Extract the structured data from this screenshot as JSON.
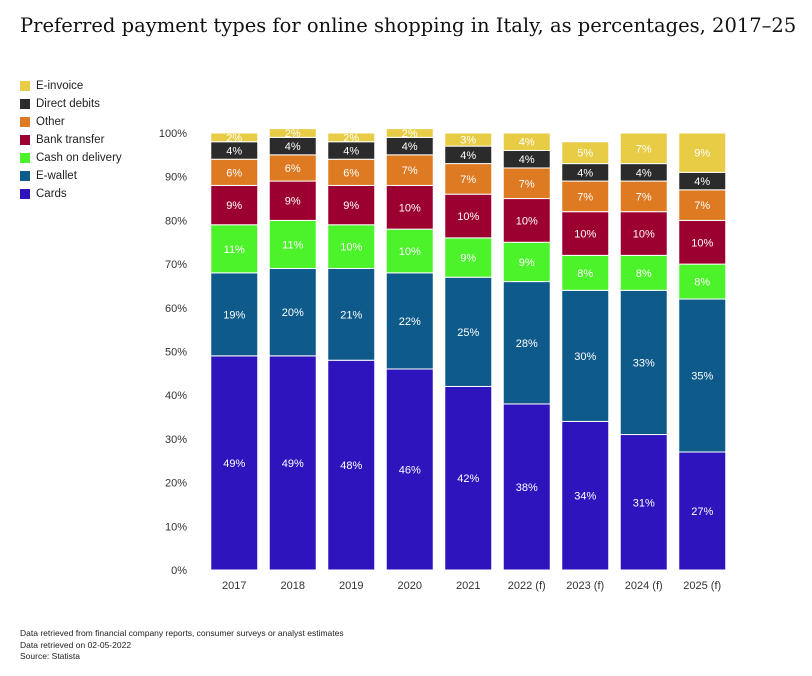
{
  "page": {
    "footer": {
      "line1": "Data retrieved from financial company reports, consumer surveys or analyst estimates",
      "line2": "Data retrieved on 02-05-2022",
      "line3": "Source: Statista"
    }
  },
  "chart_data": {
    "type": "bar",
    "stacked": true,
    "title": "Preferred payment types for online shopping in Italy, as percentages, 2017–25",
    "xlabel": "",
    "ylabel": "",
    "ylim": [
      0,
      100
    ],
    "y_ticks": [
      "0%",
      "10%",
      "20%",
      "30%",
      "40%",
      "50%",
      "60%",
      "70%",
      "80%",
      "90%",
      "100%"
    ],
    "categories": [
      "2017",
      "2018",
      "2019",
      "2020",
      "2021",
      "2022 (f)",
      "2023 (f)",
      "2024 (f)",
      "2025 (f)"
    ],
    "series": [
      {
        "name": "Cards",
        "color": "#2e14bd",
        "values": [
          49,
          49,
          48,
          46,
          42,
          38,
          34,
          31,
          27
        ]
      },
      {
        "name": "E-wallet",
        "color": "#0e5a8a",
        "values": [
          19,
          20,
          21,
          22,
          25,
          28,
          30,
          33,
          35
        ]
      },
      {
        "name": "Cash on delivery",
        "color": "#4cf22a",
        "values": [
          11,
          11,
          10,
          10,
          9,
          9,
          8,
          8,
          8
        ]
      },
      {
        "name": "Bank transfer",
        "color": "#9c0030",
        "values": [
          9,
          9,
          9,
          10,
          10,
          10,
          10,
          10,
          10
        ]
      },
      {
        "name": "Other",
        "color": "#dd7a22",
        "values": [
          6,
          6,
          6,
          7,
          7,
          7,
          7,
          7,
          7
        ]
      },
      {
        "name": "Direct debits",
        "color": "#2b2b2b",
        "values": [
          4,
          4,
          4,
          4,
          4,
          4,
          4,
          4,
          4
        ]
      },
      {
        "name": "E-invoice",
        "color": "#e8cc45",
        "values": [
          2,
          2,
          2,
          2,
          3,
          4,
          5,
          7,
          9
        ]
      }
    ],
    "legend_order": [
      "E-invoice",
      "Direct debits",
      "Other",
      "Bank transfer",
      "Cash on delivery",
      "E-wallet",
      "Cards"
    ],
    "legend_position": "top-left"
  }
}
